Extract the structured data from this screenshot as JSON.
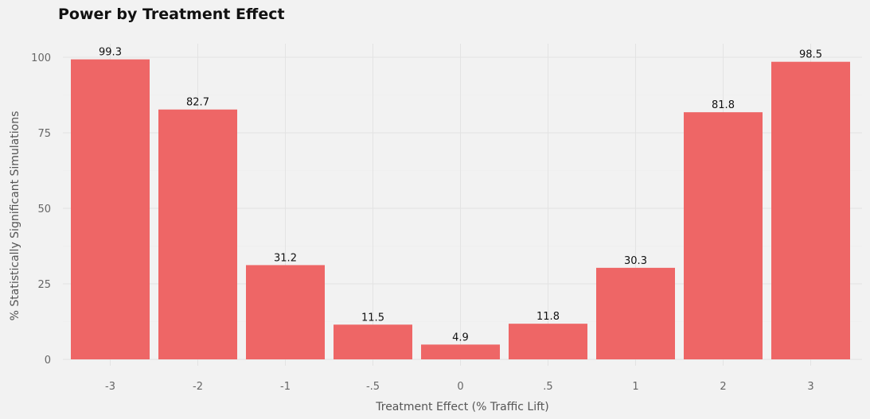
{
  "chart_data": {
    "type": "bar",
    "title": "Power by Treatment Effect",
    "xlabel": "Treatment Effect (% Traffic Lift)",
    "ylabel": "% Statistically Significant Simulations",
    "categories": [
      "-3",
      "-2",
      "-1",
      "-.5",
      "0",
      ".5",
      "1",
      "2",
      "3"
    ],
    "values": [
      99.3,
      82.7,
      31.2,
      11.5,
      4.9,
      11.8,
      30.3,
      81.8,
      98.5
    ],
    "data_labels": [
      "99.3",
      "82.7",
      "31.2",
      "11.5",
      "4.9",
      "11.8",
      "30.3",
      "81.8",
      "98.5"
    ],
    "ylim": [
      0,
      100
    ],
    "yticks": [
      0,
      25,
      50,
      75,
      100
    ],
    "grid": true,
    "legend": "none",
    "bar_color": "#ee6666",
    "background": "#f2f2f2",
    "grid_color": "#e3e3e3"
  }
}
